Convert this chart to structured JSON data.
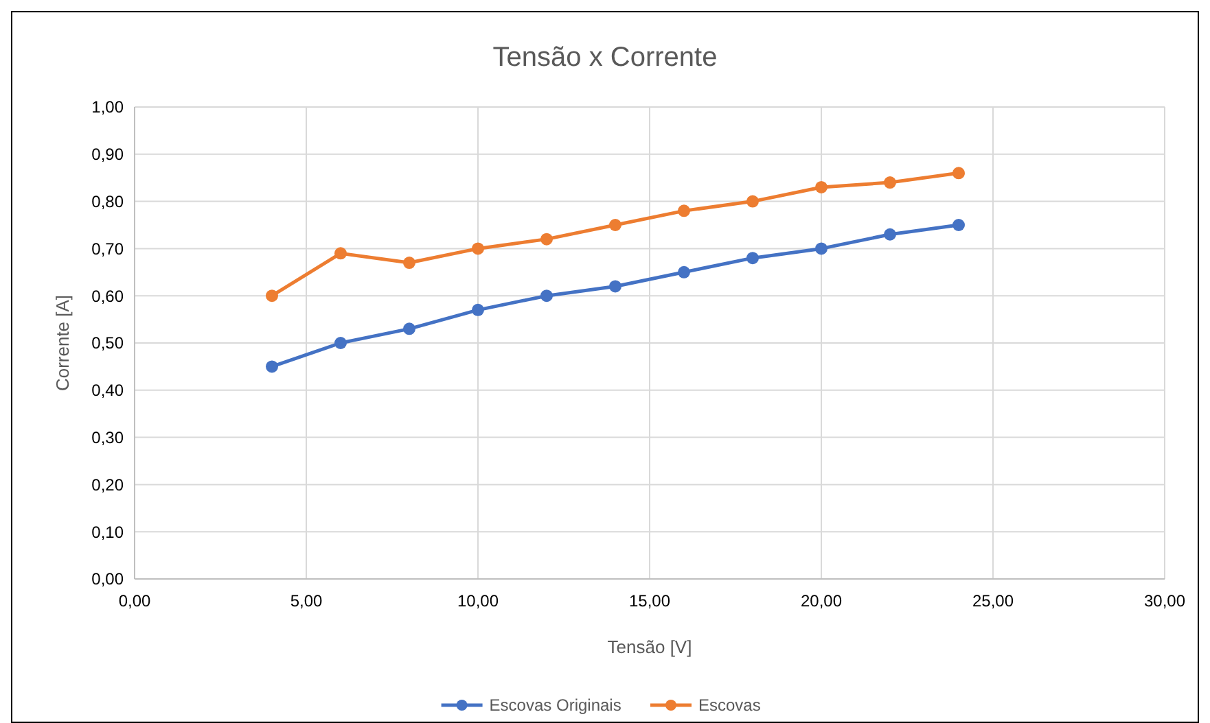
{
  "chart_data": {
    "type": "line",
    "title": "Tensão x Corrente",
    "xlabel": "Tensão [V]",
    "ylabel": "Corrente [A]",
    "x": [
      4,
      6,
      8,
      10,
      12,
      14,
      16,
      18,
      20,
      22,
      24
    ],
    "series": [
      {
        "name": "Escovas Originais",
        "color": "#4472c4",
        "values": [
          0.45,
          0.5,
          0.53,
          0.57,
          0.6,
          0.62,
          0.65,
          0.68,
          0.7,
          0.73,
          0.75
        ]
      },
      {
        "name": "Escovas",
        "color": "#ed7d31",
        "values": [
          0.6,
          0.69,
          0.67,
          0.7,
          0.72,
          0.75,
          0.78,
          0.8,
          0.83,
          0.84,
          0.86
        ]
      }
    ],
    "xlim": [
      0,
      30
    ],
    "xticks": [
      {
        "value": 0,
        "label": "0,00"
      },
      {
        "value": 5,
        "label": "5,00"
      },
      {
        "value": 10,
        "label": "10,00"
      },
      {
        "value": 15,
        "label": "15,00"
      },
      {
        "value": 20,
        "label": "20,00"
      },
      {
        "value": 25,
        "label": "25,00"
      },
      {
        "value": 30,
        "label": "30,00"
      }
    ],
    "ylim": [
      0,
      1
    ],
    "yticks": [
      {
        "value": 0,
        "label": "0,00"
      },
      {
        "value": 0.1,
        "label": "0,10"
      },
      {
        "value": 0.2,
        "label": "0,20"
      },
      {
        "value": 0.3,
        "label": "0,30"
      },
      {
        "value": 0.4,
        "label": "0,40"
      },
      {
        "value": 0.5,
        "label": "0,50"
      },
      {
        "value": 0.6,
        "label": "0,60"
      },
      {
        "value": 0.7,
        "label": "0,70"
      },
      {
        "value": 0.8,
        "label": "0,80"
      },
      {
        "value": 0.9,
        "label": "0,90"
      },
      {
        "value": 1,
        "label": "1,00"
      }
    ],
    "grid": true,
    "legend": "bottom",
    "marker": "circle",
    "line_style": "solid"
  }
}
